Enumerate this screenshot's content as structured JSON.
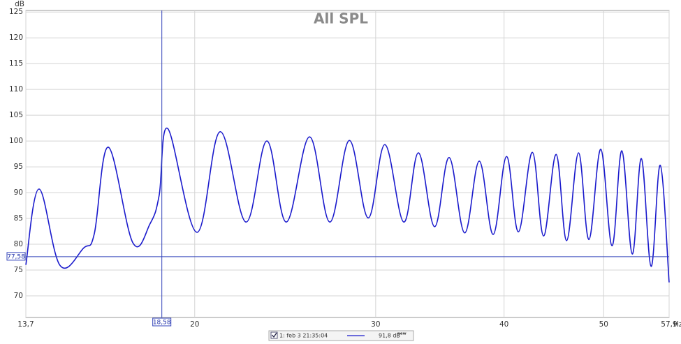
{
  "chart_data": {
    "type": "line",
    "title": "All SPL",
    "y_label": "dB",
    "x_unit": "Hz",
    "x_scale": "log",
    "grid": true,
    "xlim": [
      13.7,
      57.9
    ],
    "xticks": [
      {
        "value": 13.7,
        "label": "13,7"
      },
      20,
      30,
      40,
      50,
      {
        "value": 57.9,
        "label": "57,9"
      }
    ],
    "ylim": [
      65.8,
      125.3
    ],
    "yticks": [
      70,
      75,
      80,
      85,
      90,
      95,
      100,
      105,
      110,
      115,
      120,
      125
    ],
    "cursor_x": {
      "value": 18.58,
      "label": "18,58"
    },
    "cursor_y": {
      "value": 77.58,
      "label": "77,58"
    },
    "legend": {
      "entry": "1: feb 3 21:35:04",
      "level": "91,8 dB",
      "tag": "new"
    },
    "series": [
      {
        "name": "1: feb 3 21:35:04",
        "color": "#1a1acc",
        "x": [
          13.7,
          14.11,
          14.79,
          15.6,
          15.97,
          16.48,
          17.41,
          18.1,
          18.47,
          18.83,
          20.1,
          21.17,
          22.43,
          23.51,
          24.56,
          25.87,
          27.07,
          28.28,
          29.5,
          30.63,
          31.95,
          33.02,
          34.23,
          35.37,
          36.62,
          37.84,
          39.04,
          40.22,
          41.31,
          42.62,
          43.7,
          44.95,
          46.02,
          47.26,
          48.38,
          49.68,
          50.95,
          52.08,
          53.31,
          54.41,
          55.61,
          56.76,
          57.9
        ],
        "values": [
          76,
          90.7,
          75.9,
          79.3,
          82,
          98.8,
          80.3,
          84,
          89.5,
          102.4,
          82.3,
          101.8,
          84.3,
          100,
          84.3,
          100.8,
          84.3,
          100.1,
          85.1,
          99.3,
          84.3,
          97.7,
          83.4,
          96.8,
          82.2,
          96.1,
          81.9,
          97,
          82.4,
          97.8,
          81.6,
          97.4,
          80.7,
          97.7,
          80.9,
          98.4,
          79.7,
          98.1,
          78.1,
          96.6,
          75.7,
          95.3,
          72.6
        ]
      }
    ]
  }
}
